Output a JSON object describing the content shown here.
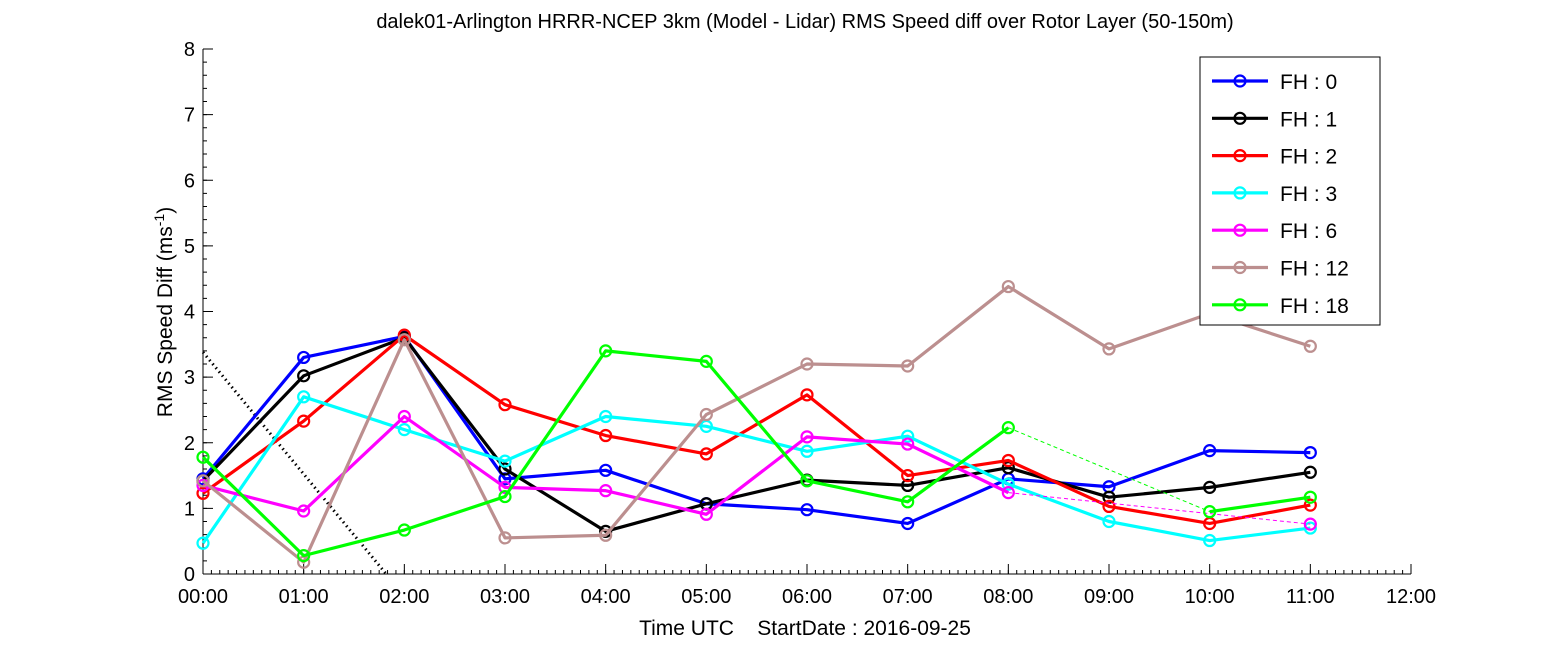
{
  "chart_data": {
    "type": "line",
    "title": "dalek01-Arlington HRRR-NCEP 3km (Model - Lidar) RMS Speed diff over Rotor Layer (50-150m)",
    "xlabel": "Time UTC    StartDate : 2016-09-25",
    "ylabel_main": "RMS Speed Diff (ms",
    "ylabel_sup": "-1",
    "ylabel_end": ")",
    "xlim": [
      0,
      12
    ],
    "ylim": [
      0,
      8
    ],
    "x_tick_labels": [
      "00:00",
      "01:00",
      "02:00",
      "03:00",
      "04:00",
      "05:00",
      "06:00",
      "07:00",
      "08:00",
      "09:00",
      "10:00",
      "11:00",
      "12:00"
    ],
    "y_tick_labels": [
      "0",
      "1",
      "2",
      "3",
      "4",
      "5",
      "6",
      "7",
      "8"
    ],
    "grid": false,
    "legend_position": "top-right",
    "x": [
      0,
      1,
      2,
      3,
      4,
      5,
      6,
      7,
      8,
      9,
      10,
      11
    ],
    "series": [
      {
        "name": "FH : 0",
        "color": "#0000ff",
        "values": [
          1.45,
          3.3,
          3.62,
          1.45,
          1.58,
          1.07,
          0.98,
          0.77,
          1.45,
          1.33,
          1.88,
          1.85
        ]
      },
      {
        "name": "FH : 1",
        "color": "#000000",
        "values": [
          1.42,
          3.02,
          3.6,
          1.6,
          0.65,
          1.07,
          1.43,
          1.35,
          1.62,
          1.17,
          1.32,
          1.55
        ]
      },
      {
        "name": "FH : 2",
        "color": "#ff0000",
        "values": [
          1.23,
          2.33,
          3.64,
          2.58,
          2.11,
          1.83,
          2.73,
          1.5,
          1.73,
          1.03,
          0.77,
          1.05
        ]
      },
      {
        "name": "FH : 3",
        "color": "#00ffff",
        "values": [
          0.47,
          2.7,
          2.2,
          1.72,
          2.4,
          2.25,
          1.87,
          2.1,
          1.37,
          0.8,
          0.51,
          0.7
        ]
      },
      {
        "name": "FH : 6",
        "color": "#ff00ff",
        "values": [
          1.35,
          0.96,
          2.4,
          1.32,
          1.27,
          0.91,
          2.09,
          1.98,
          1.24,
          null,
          null,
          0.76
        ]
      },
      {
        "name": "FH : 12",
        "color": "#bc8f8f",
        "values": [
          1.42,
          0.18,
          3.57,
          0.55,
          0.59,
          2.43,
          3.2,
          3.17,
          4.38,
          3.43,
          3.97,
          3.47
        ]
      },
      {
        "name": "FH : 18",
        "color": "#00ff00",
        "values": [
          1.78,
          0.28,
          0.67,
          1.18,
          3.4,
          3.24,
          1.42,
          1.1,
          2.23,
          null,
          0.95,
          1.17
        ]
      }
    ],
    "reference_line": {
      "x": [
        0,
        1.82
      ],
      "y": [
        3.38,
        0
      ]
    }
  }
}
